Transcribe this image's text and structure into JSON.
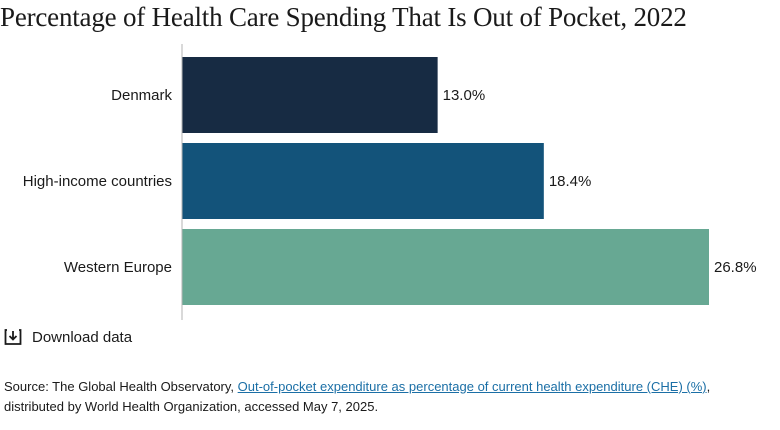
{
  "title": "Percentage of Health Care Spending That Is Out of Pocket, 2022",
  "chart_data": {
    "type": "bar",
    "orientation": "horizontal",
    "categories": [
      "Denmark",
      "High-income countries",
      "Western Europe"
    ],
    "values": [
      13.0,
      18.4,
      26.8
    ],
    "value_labels": [
      "13.0%",
      "18.4%",
      "26.8%"
    ],
    "colors": [
      "#172b43",
      "#13537a",
      "#67a893"
    ],
    "xlim": [
      0,
      26.8
    ],
    "grid": false
  },
  "download": {
    "label": "Download data",
    "icon": "download-icon"
  },
  "source": {
    "prefix": "Source: The Global Health Observatory, ",
    "link_text": "Out-of-pocket expenditure as percentage of current health expenditure (CHE) (%)",
    "middle": ",",
    "suffix": "distributed by World Health Organization, accessed May 7, 2025."
  }
}
